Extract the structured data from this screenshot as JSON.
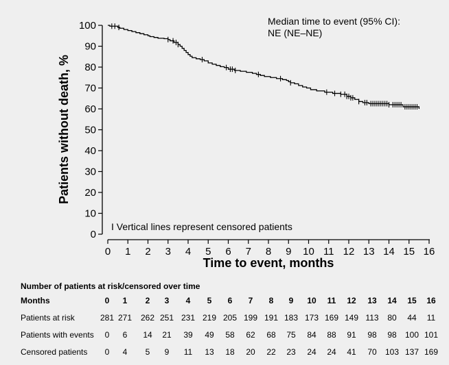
{
  "chart_data": {
    "type": "line",
    "title": "",
    "xlabel": "Time to event, months",
    "ylabel": "Patients without death, %",
    "xlim": [
      0,
      16
    ],
    "ylim": [
      0,
      100
    ],
    "x_ticks": [
      0,
      1,
      2,
      3,
      4,
      5,
      6,
      7,
      8,
      9,
      10,
      11,
      12,
      13,
      14,
      15,
      16
    ],
    "y_ticks": [
      0,
      10,
      20,
      30,
      40,
      50,
      60,
      70,
      80,
      90,
      100
    ],
    "grid": false,
    "annotations": {
      "median_label": "Median time to event (95% CI):",
      "median_value": "NE (NE–NE)",
      "censor_note": "I Vertical lines represent censored patients"
    },
    "series": [
      {
        "name": "",
        "color": "#000000",
        "x": [
          0,
          0.1,
          0.5,
          0.6,
          0.8,
          1.0,
          1.2,
          1.4,
          1.6,
          1.8,
          2.0,
          2.1,
          2.3,
          2.5,
          2.8,
          3.0,
          3.1,
          3.3,
          3.5,
          3.6,
          3.7,
          3.8,
          3.9,
          4.0,
          4.1,
          4.2,
          4.4,
          4.6,
          4.8,
          5.0,
          5.2,
          5.4,
          5.6,
          5.8,
          6.0,
          6.3,
          6.6,
          6.9,
          7.2,
          7.4,
          7.6,
          7.8,
          8.1,
          8.4,
          8.7,
          8.9,
          9.0,
          9.1,
          9.3,
          9.5,
          9.7,
          9.9,
          10.1,
          10.4,
          10.8,
          11.2,
          11.6,
          11.9,
          12.1,
          12.3,
          12.5,
          12.7,
          13.0,
          13.5,
          14.0,
          14.4,
          14.7,
          15.0,
          15.5
        ],
        "y": [
          100,
          99.6,
          99.0,
          98.6,
          98.0,
          97.5,
          97.0,
          96.5,
          96.0,
          95.5,
          95.0,
          94.6,
          94.2,
          93.8,
          93.6,
          93.2,
          92.6,
          91.8,
          90.8,
          90.0,
          89.0,
          88.0,
          87.0,
          86.0,
          85.2,
          84.5,
          84.0,
          83.6,
          83.0,
          82.0,
          81.4,
          80.8,
          80.2,
          79.8,
          79.0,
          78.4,
          78.0,
          77.5,
          77.0,
          76.5,
          76.0,
          75.5,
          75.0,
          74.5,
          74.0,
          73.6,
          73.0,
          72.5,
          72.0,
          71.2,
          70.5,
          70.0,
          69.2,
          68.6,
          68.0,
          67.4,
          67.0,
          66.0,
          65.3,
          64.5,
          63.5,
          63.0,
          62.5,
          62.5,
          62.0,
          62.0,
          61.0,
          61.0,
          60.0
        ],
        "censored_x": [
          0.2,
          0.35,
          0.55,
          3.0,
          3.25,
          3.4,
          3.5,
          4.7,
          5.9,
          6.1,
          6.2,
          6.35,
          7.5,
          8.6,
          9.1,
          10.9,
          11.3,
          11.6,
          11.8,
          11.9,
          12.0,
          12.1,
          12.2,
          12.5,
          12.8,
          12.9,
          13.1,
          13.2,
          13.3,
          13.4,
          13.5,
          13.6,
          13.7,
          13.8,
          13.9,
          14.0,
          14.2,
          14.3,
          14.4,
          14.5,
          14.6,
          14.8,
          14.9,
          15.0,
          15.1,
          15.2,
          15.3,
          15.4
        ]
      }
    ],
    "risk_table": {
      "title": "Number of patients at risk/censored over time",
      "header_label": "Months",
      "months": [
        "0",
        "1",
        "2",
        "3",
        "4",
        "5",
        "6",
        "7",
        "8",
        "9",
        "10",
        "11",
        "12",
        "13",
        "14",
        "15",
        "16"
      ],
      "rows": [
        {
          "label": "Patients at risk",
          "values": [
            "281",
            "271",
            "262",
            "251",
            "231",
            "219",
            "205",
            "199",
            "191",
            "183",
            "173",
            "169",
            "149",
            "113",
            "80",
            "44",
            "11"
          ]
        },
        {
          "label": "Patients with events",
          "values": [
            "0",
            "6",
            "14",
            "21",
            "39",
            "49",
            "58",
            "62",
            "68",
            "75",
            "84",
            "88",
            "91",
            "98",
            "98",
            "100",
            "101"
          ]
        },
        {
          "label": "Censored patients",
          "values": [
            "0",
            "4",
            "5",
            "9",
            "11",
            "13",
            "18",
            "20",
            "22",
            "23",
            "24",
            "24",
            "41",
            "70",
            "103",
            "137",
            "169"
          ]
        }
      ]
    }
  }
}
